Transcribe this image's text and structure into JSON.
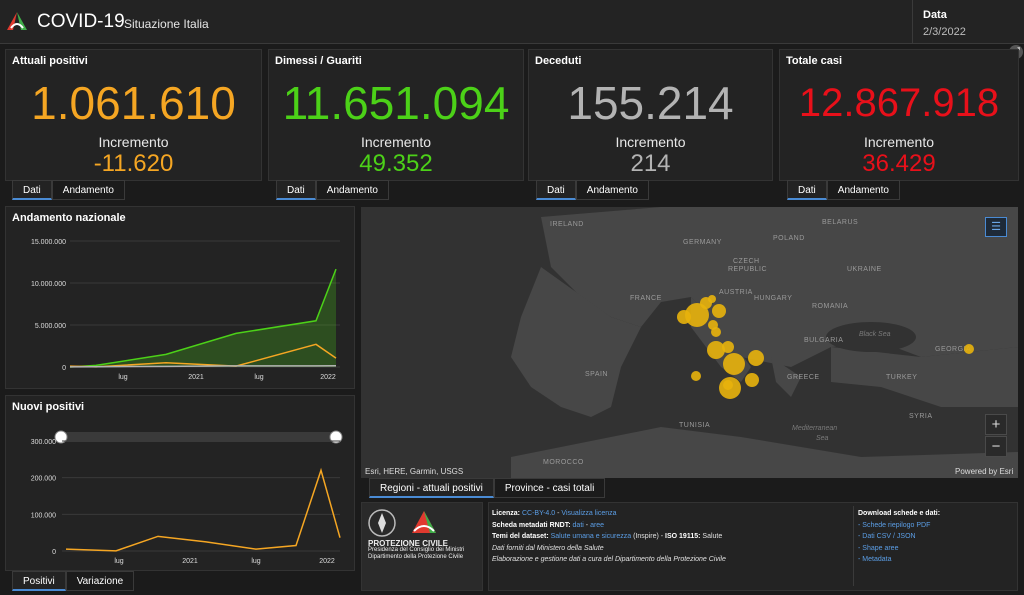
{
  "header": {
    "title": "COVID-19",
    "subtitle": "Situazione Italia",
    "date_label": "Data",
    "date_value": "2/3/2022"
  },
  "kpis": [
    {
      "title": "Attuali positivi",
      "value": "1.061.610",
      "inc_label": "Incremento",
      "inc_value": "-11.620",
      "color": "#f5a623"
    },
    {
      "title": "Dimessi / Guariti",
      "value": "11.651.094",
      "inc_label": "Incremento",
      "inc_value": "49.352",
      "color": "#4cd118"
    },
    {
      "title": "Deceduti",
      "value": "155.214",
      "inc_label": "Incremento",
      "inc_value": "214",
      "color": "#b3b3b3"
    },
    {
      "title": "Totale casi",
      "value": "12.867.918",
      "inc_label": "Incremento",
      "inc_value": "36.429",
      "color": "#e8101a"
    }
  ],
  "kpi_tabs": [
    "Dati",
    "Andamento"
  ],
  "chart1": {
    "title": "Andamento nazionale",
    "y_ticks": [
      "15.000.000",
      "10.000.000",
      "5.000.000",
      "0"
    ],
    "x_ticks": [
      "lug",
      "2021",
      "lug",
      "2022"
    ]
  },
  "chart2": {
    "title": "Nuovi positivi",
    "y_ticks": [
      "300.000",
      "200.000",
      "100.000",
      "0"
    ],
    "x_ticks": [
      "lug",
      "2021",
      "lug",
      "2022"
    ]
  },
  "chart_tabs": [
    "Positivi",
    "Variazione"
  ],
  "map": {
    "labels": [
      "IRELAND",
      "GERMANY",
      "CZECH",
      "REPUBLIC",
      "POLAND",
      "BELARUS",
      "UKRAINE",
      "FRANCE",
      "AUSTRIA",
      "HUNGARY",
      "ROMANIA",
      "SPAIN",
      "BULGARIA",
      "GEORGIA",
      "GREECE",
      "TURKEY",
      "TUNISIA",
      "SYRIA",
      "MOROCCO"
    ],
    "seas": [
      "Black Sea",
      "Mediterranean",
      "Sea"
    ],
    "attribution": "Esri, HERE, Garmin, USGS",
    "powered": "Powered by Esri",
    "tabs": [
      "Regioni - attuali positivi",
      "Province - casi totali"
    ],
    "zoom_in": "+",
    "zoom_out": "−"
  },
  "charts_data_note": "",
  "chart_data": [
    {
      "type": "line",
      "title": "Andamento nazionale",
      "x": [
        "2020-03",
        "2020-07",
        "2021-01",
        "2021-07",
        "2022-01",
        "2022-03"
      ],
      "series": [
        {
          "name": "",
          "color": "#4cd118",
          "values": [
            0,
            200000,
            1500000,
            4000000,
            5500000,
            11651094
          ]
        },
        {
          "name": "",
          "color": "#f5a623",
          "values": [
            100000,
            20000,
            500000,
            100000,
            2700000,
            1061610
          ]
        },
        {
          "name": "",
          "color": "#b3b3b3",
          "values": [
            10000,
            35000,
            80000,
            128000,
            140000,
            155214
          ]
        }
      ],
      "ylim": [
        0,
        15000000
      ]
    },
    {
      "type": "bar",
      "title": "Nuovi positivi",
      "x": [
        "2020-03",
        "2020-07",
        "2020-11",
        "2021-03",
        "2021-07",
        "2021-11",
        "2022-01",
        "2022-03"
      ],
      "values": [
        5000,
        300,
        40000,
        25000,
        5000,
        15000,
        220000,
        36429
      ],
      "ylim": [
        0,
        300000
      ]
    }
  ],
  "info": {
    "licenza_label": "Licenza:",
    "licenza_link1": "CC-BY-4.0",
    "licenza_sep": " - ",
    "licenza_link2": "Visualizza licenza",
    "scheda_label": "Scheda metadati RNDT:",
    "scheda_link1": "dati",
    "scheda_sep": " - ",
    "scheda_link2": "aree",
    "temi_label": "Temi del dataset:",
    "temi_link": "Salute umana e sicurezza",
    "temi_rest": "(Inspire) - ",
    "temi_iso": "ISO 19115:",
    "temi_iso_val": " Salute",
    "fonte": "Dati forniti dal Ministero della Salute",
    "elab": "Elaborazione e gestione dati a cura del Dipartimento della Protezione Civile"
  },
  "downloads": {
    "title": "Download schede e dati:",
    "items": [
      "- Schede riepilogo PDF",
      "- Dati CSV / JSON",
      "- Shape aree",
      "- Metadata"
    ]
  },
  "protezione": {
    "name": "PROTEZIONE CIVILE",
    "line1": "Presidenza del Consiglio dei Ministri",
    "line2": "Dipartimento della Protezione Civile"
  }
}
